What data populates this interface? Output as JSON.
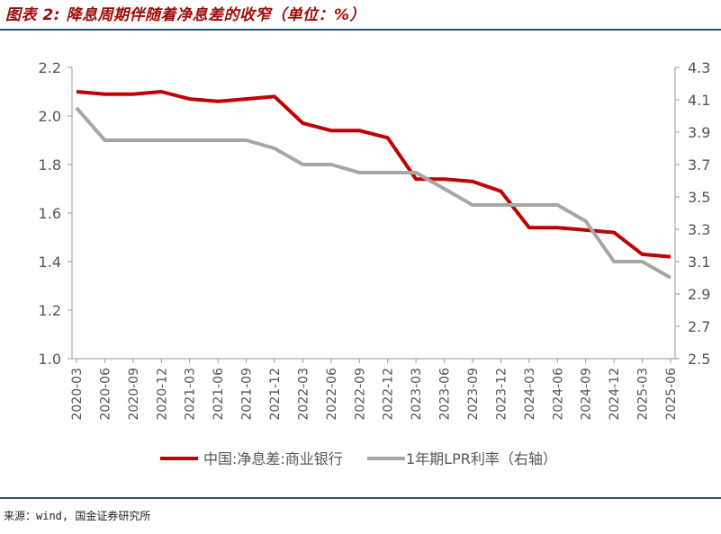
{
  "figure": {
    "title": "图表 2: 降息周期伴随着净息差的收窄（单位：%）",
    "source": "来源：wind, 国金证券研究所"
  },
  "chart_data": {
    "type": "line",
    "categories": [
      "2020-03",
      "2020-06",
      "2020-09",
      "2020-12",
      "2021-03",
      "2021-06",
      "2021-09",
      "2021-12",
      "2022-03",
      "2022-06",
      "2022-09",
      "2022-12",
      "2023-03",
      "2023-06",
      "2023-09",
      "2023-12",
      "2024-03",
      "2024-06",
      "2024-09",
      "2024-12",
      "2025-03",
      "2025-06"
    ],
    "left_axis": {
      "ylim": [
        1.0,
        2.2
      ],
      "ticks": [
        "1.0",
        "1.2",
        "1.4",
        "1.6",
        "1.8",
        "2.0",
        "2.2"
      ]
    },
    "right_axis": {
      "ylim": [
        2.5,
        4.3
      ],
      "ticks": [
        "2.5",
        "2.7",
        "2.9",
        "3.1",
        "3.3",
        "3.5",
        "3.7",
        "3.9",
        "4.1",
        "4.3"
      ]
    },
    "series": [
      {
        "name": "中国:净息差:商业银行",
        "axis": "left",
        "color": "#c00000",
        "values": [
          2.1,
          2.09,
          2.09,
          2.1,
          2.07,
          2.06,
          2.07,
          2.08,
          1.97,
          1.94,
          1.94,
          1.91,
          1.74,
          1.74,
          1.73,
          1.69,
          1.54,
          1.54,
          1.53,
          1.52,
          1.43,
          1.42
        ]
      },
      {
        "name": "1年期LPR利率（右轴）",
        "axis": "right",
        "color": "#a6a6a6",
        "values": [
          4.05,
          3.85,
          3.85,
          3.85,
          3.85,
          3.85,
          3.85,
          3.8,
          3.7,
          3.7,
          3.65,
          3.65,
          3.65,
          3.55,
          3.45,
          3.45,
          3.45,
          3.45,
          3.35,
          3.1,
          3.1,
          3.0
        ]
      }
    ],
    "grid": false,
    "legend_position": "bottom"
  }
}
